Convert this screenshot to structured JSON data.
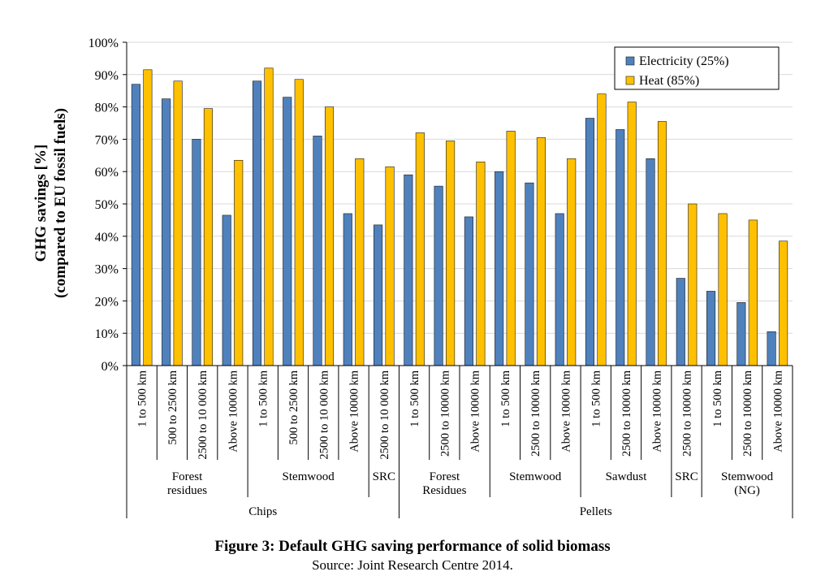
{
  "chart_data": {
    "type": "bar",
    "ylabel_line1": "GHG savings [%]",
    "ylabel_line2": "(compared to EU fossil fuels)",
    "ylim": [
      0,
      100
    ],
    "yticks": [
      0,
      10,
      20,
      30,
      40,
      50,
      60,
      70,
      80,
      90,
      100
    ],
    "ytick_labels": [
      "0%",
      "10%",
      "20%",
      "30%",
      "40%",
      "50%",
      "60%",
      "70%",
      "80%",
      "90%",
      "100%"
    ],
    "grid": true,
    "legend_position": "top-right",
    "categories": [
      "1 to 500 km",
      "500 to 2500 km",
      "2500 to 10 000 km",
      "Above 10000 km",
      "1 to 500 km",
      "500 to 2500 km",
      "2500 to 10 000 km",
      "Above 10000 km",
      "2500 to 10 000 km",
      "1 to 500 km",
      "2500  to 10000 km",
      "Above 10000 km",
      "1 to 500 km",
      "2500  to 10000 km",
      "Above 10000 km",
      "1 to 500 km",
      "2500  to 10000 km",
      "Above 10000 km",
      "2500  to 10000 km",
      "1 to 500 km",
      "2500  to 10000 km",
      "Above 10000 km"
    ],
    "series": [
      {
        "name": "Electricity (25%)",
        "color": "#4f81bd",
        "values": [
          87,
          82.5,
          70,
          46.5,
          88,
          83,
          71,
          47,
          43.5,
          59,
          55.5,
          46,
          60,
          56.5,
          47,
          76.5,
          73,
          64,
          27,
          23,
          19.5,
          10.5
        ]
      },
      {
        "name": "Heat (85%)",
        "color": "#ffc000",
        "values": [
          91.5,
          88,
          79.5,
          63.5,
          92,
          88.5,
          80,
          64,
          61.5,
          72,
          69.5,
          63,
          72.5,
          70.5,
          64,
          84,
          81.5,
          75.5,
          50,
          47,
          45,
          38.5
        ]
      }
    ],
    "subgroups": [
      {
        "label": "Forest\nresidues",
        "start": 0,
        "end": 3
      },
      {
        "label": "Stemwood",
        "start": 4,
        "end": 7
      },
      {
        "label": "SRC",
        "start": 8,
        "end": 8
      },
      {
        "label": "Forest\nResidues",
        "start": 9,
        "end": 11
      },
      {
        "label": "Stemwood",
        "start": 12,
        "end": 14
      },
      {
        "label": "Sawdust",
        "start": 15,
        "end": 17
      },
      {
        "label": "SRC",
        "start": 18,
        "end": 18
      },
      {
        "label": "Stemwood\n(NG)",
        "start": 19,
        "end": 21
      }
    ],
    "groups": [
      {
        "label": "Chips",
        "start": 0,
        "end": 8
      },
      {
        "label": "Pellets",
        "start": 9,
        "end": 21
      }
    ]
  },
  "caption": {
    "title": "Figure 3: Default GHG saving performance of solid biomass",
    "source": "Source: Joint Research Centre 2014."
  }
}
